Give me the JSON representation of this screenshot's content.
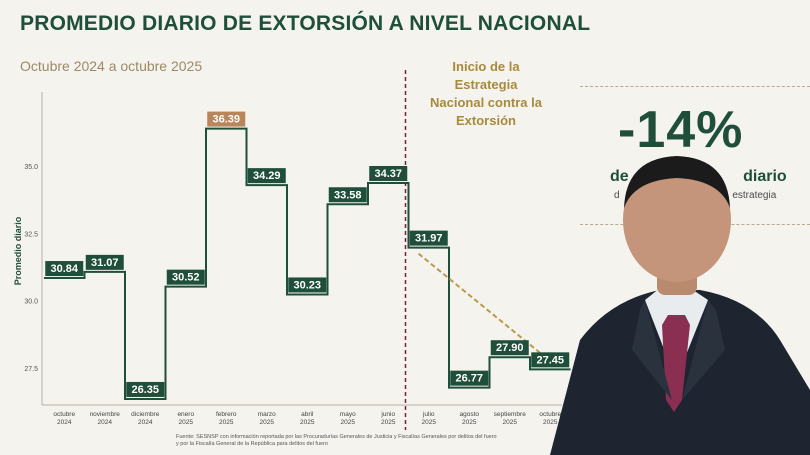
{
  "header": {
    "title": "PROMEDIO DIARIO DE EXTORSIÓN A NIVEL NACIONAL",
    "subtitle": "Octubre 2024 a octubre 2025"
  },
  "annotation": {
    "lines": [
      "Inicio de la",
      "Estrategia",
      "Nacional contra la",
      "Extorsión"
    ]
  },
  "side": {
    "percent": "-14%",
    "line1": "de",
    "line1_tail": "diario",
    "line2": "d",
    "line2_tail": "estrategia"
  },
  "source": {
    "line1": "Fuente: SESNSP con información reportada por las Procuradurías Generales de Justicia y Fiscalías Generales por delitos del fuero",
    "line2": "y por la Fiscalía General de la República para delitos del fuero"
  },
  "colors": {
    "accent": "#1f4e3a",
    "highlight": "#b8865a",
    "gold": "#a88a3a",
    "divider": "#7a1f3d"
  },
  "chart_data": {
    "type": "line",
    "step": true,
    "ylabel": "Promedio diario",
    "ylim": [
      26.2,
      37.6
    ],
    "yticks": [
      27.5,
      30.0,
      32.5,
      35.0
    ],
    "ytick_labels": [
      "27.5",
      "30.0",
      "32.5",
      "35.0"
    ],
    "categories": [
      [
        "octubre",
        "2024"
      ],
      [
        "noviembre",
        "2024"
      ],
      [
        "diciembre",
        "2024"
      ],
      [
        "enero",
        "2025"
      ],
      [
        "febrero",
        "2025"
      ],
      [
        "marzo",
        "2025"
      ],
      [
        "abril",
        "2025"
      ],
      [
        "mayo",
        "2025"
      ],
      [
        "junio",
        "2025"
      ],
      [
        "julio",
        "2025"
      ],
      [
        "agosto",
        "2025"
      ],
      [
        "septiembre",
        "2025"
      ],
      [
        "octubre",
        "2025"
      ]
    ],
    "values": [
      30.84,
      31.07,
      26.35,
      30.52,
      36.39,
      34.29,
      30.23,
      33.58,
      34.37,
      31.97,
      26.77,
      27.9,
      27.45
    ],
    "labels": [
      "30.84",
      "31.07",
      "26.35",
      "30.52",
      "36.39",
      "34.29",
      "30.23",
      "33.58",
      "34.37",
      "31.97",
      "26.77",
      "27.90",
      "27.45"
    ],
    "highlight_index": 4,
    "strategy_start_index": 9
  }
}
